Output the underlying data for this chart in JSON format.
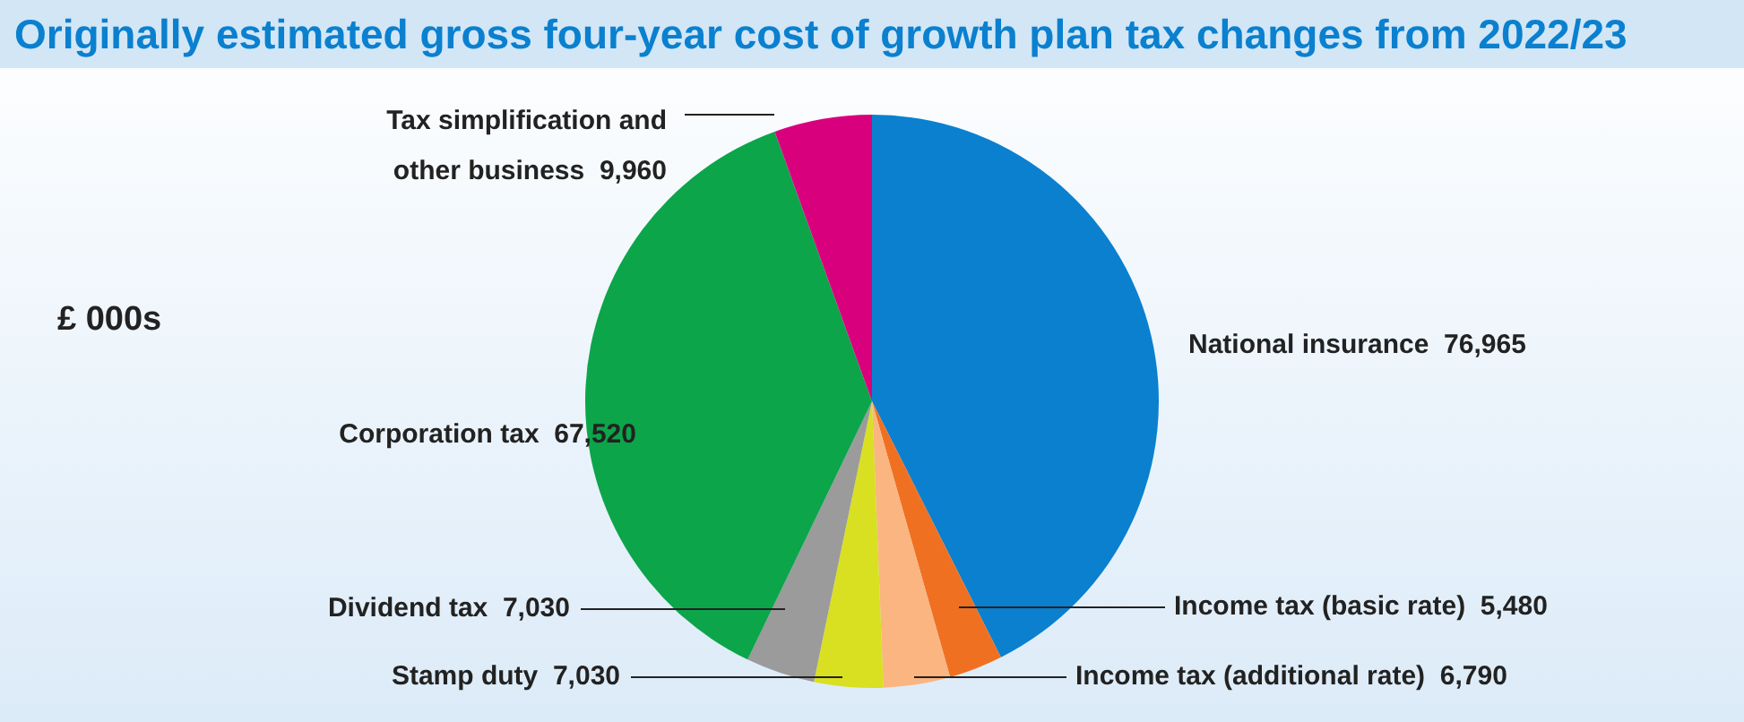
{
  "chart_data": {
    "type": "pie",
    "title": "Originally estimated gross four-year cost of growth plan tax changes from 2022/23",
    "categories": [
      "National insurance",
      "Income tax (basic rate)",
      "Income tax (additional rate)",
      "Stamp duty",
      "Dividend tax",
      "Corporation tax",
      "Tax simplification and other business"
    ],
    "values": [
      76965,
      5480,
      6790,
      7030,
      7030,
      67520,
      9960
    ],
    "value_labels": [
      "76,965",
      "5,480",
      "6,790",
      "7,030",
      "7,030",
      "67,520",
      "9,960"
    ],
    "colors": [
      "#0a80cf",
      "#f07022",
      "#fbb580",
      "#d9e021",
      "#9b9b9b",
      "#0ca54a",
      "#d9007e"
    ],
    "annotations": [
      "£ 000s"
    ]
  }
}
